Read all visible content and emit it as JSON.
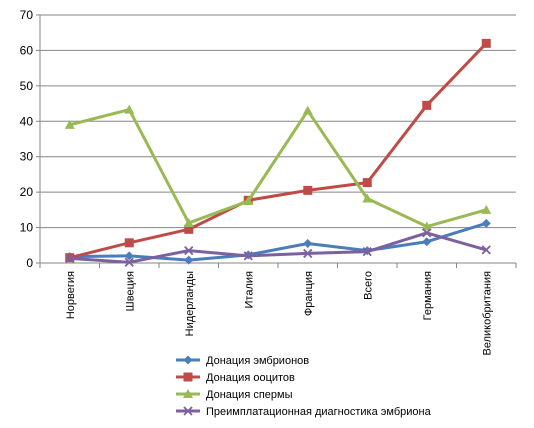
{
  "chart_data": {
    "type": "line",
    "categories": [
      "Норвегия",
      "Швеция",
      "Нидерланды",
      "Италия",
      "Франция",
      "Всего",
      "Германия",
      "Великобритания"
    ],
    "ylim": [
      0,
      70
    ],
    "yticks": [
      0,
      10,
      20,
      30,
      40,
      50,
      60,
      70
    ],
    "grid": true,
    "legend_position": "bottom",
    "series": [
      {
        "name": "Донация эмбрионов",
        "color": "#4a7ebb",
        "marker": "diamond",
        "values": [
          1.8,
          2.0,
          0.8,
          2.3,
          5.5,
          3.5,
          6.0,
          11.2
        ]
      },
      {
        "name": "Донация ооцитов",
        "color": "#be4b48",
        "marker": "square",
        "values": [
          1.5,
          5.7,
          9.5,
          17.7,
          20.5,
          22.7,
          44.5,
          62.0
        ]
      },
      {
        "name": "Донация спермы",
        "color": "#98b954",
        "marker": "triangle",
        "values": [
          39.0,
          43.3,
          11.3,
          17.5,
          43.0,
          18.2,
          10.3,
          15.0
        ]
      },
      {
        "name": "Преимплатационная диагностика эмбриона",
        "color": "#7d60a0",
        "marker": "x",
        "values": [
          1.3,
          0.2,
          3.5,
          2.0,
          2.7,
          3.2,
          8.5,
          3.7
        ]
      }
    ]
  }
}
